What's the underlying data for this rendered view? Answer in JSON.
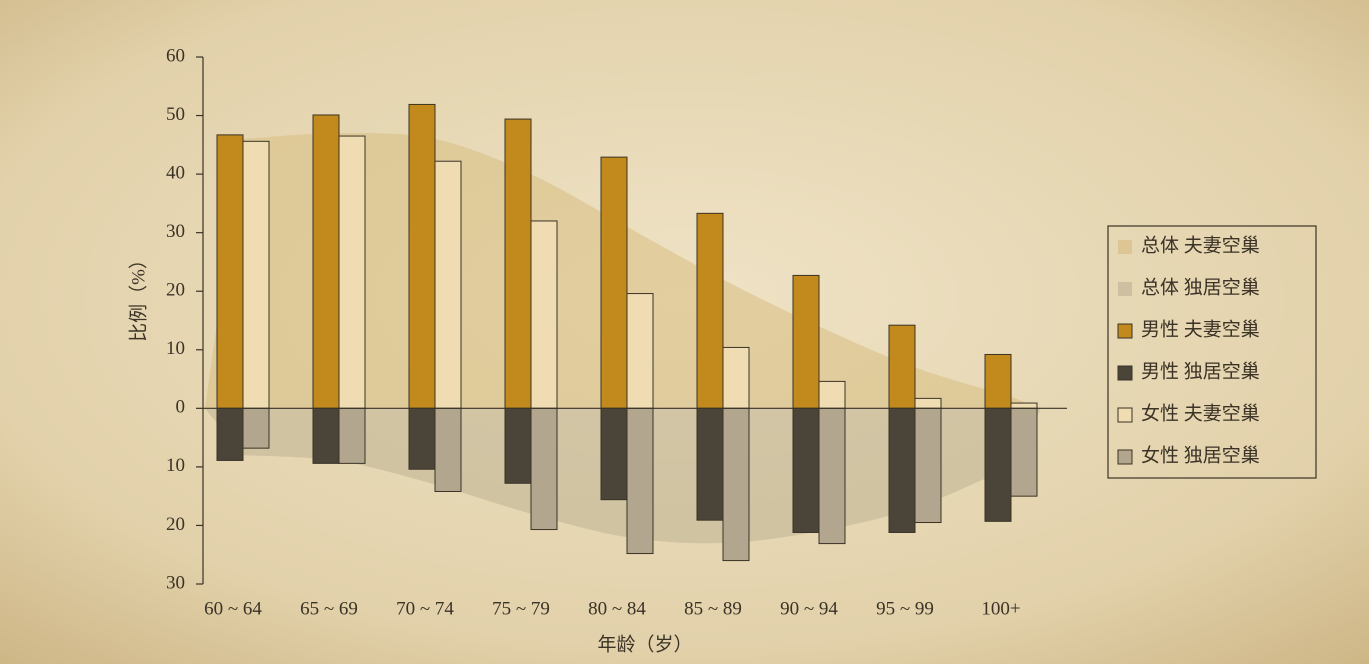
{
  "chart_data": {
    "type": "bar",
    "y_label": "比例（%）",
    "x_label": "年龄（岁）",
    "categories": [
      "60 ~ 64",
      "65 ~ 69",
      "70 ~ 74",
      "75 ~ 79",
      "80 ~ 84",
      "85 ~ 89",
      "90 ~ 94",
      "95 ~ 99",
      "100+"
    ],
    "ylim": [
      -30,
      60
    ],
    "yticks": [
      60,
      50,
      40,
      30,
      20,
      10,
      0,
      {
        "value": -10,
        "label": "10"
      },
      {
        "value": -20,
        "label": "20"
      },
      {
        "value": -30,
        "label": "30"
      }
    ],
    "legend": "right",
    "series": [
      {
        "name": "总体 夫妻空巢",
        "type": "area",
        "color": "#d8bf86",
        "values": [
          46,
          47,
          46,
          40,
          31,
          22,
          14,
          7,
          2
        ]
      },
      {
        "name": "总体 独居空巢",
        "type": "area",
        "color": "#c2b596",
        "values": [
          -8,
          -9,
          -13,
          -18,
          -22,
          -23,
          -21,
          -17,
          -10
        ]
      },
      {
        "name": "男性 夫妻空巢",
        "type": "bar",
        "color": "#c28a1c",
        "values": [
          46.7,
          50.1,
          51.9,
          49.4,
          42.9,
          33.3,
          22.7,
          14.2,
          9.2
        ]
      },
      {
        "name": "男性 独居空巢",
        "type": "bar",
        "color": "#4a4538",
        "values": [
          -8.9,
          -9.4,
          -10.4,
          -12.8,
          -15.6,
          -19.1,
          -21.2,
          -21.2,
          -19.3
        ]
      },
      {
        "name": "女性 夫妻空巢",
        "type": "bar",
        "color": "#efdcb2",
        "values": [
          45.6,
          46.5,
          42.2,
          32,
          19.6,
          10.4,
          4.6,
          1.7,
          0.9
        ]
      },
      {
        "name": "女性 独居空巢",
        "type": "bar",
        "color": "#b2a68e",
        "values": [
          -6.8,
          -9.4,
          -14.2,
          -20.7,
          -24.8,
          -26,
          -23.1,
          -19.5,
          -15
        ]
      }
    ]
  }
}
